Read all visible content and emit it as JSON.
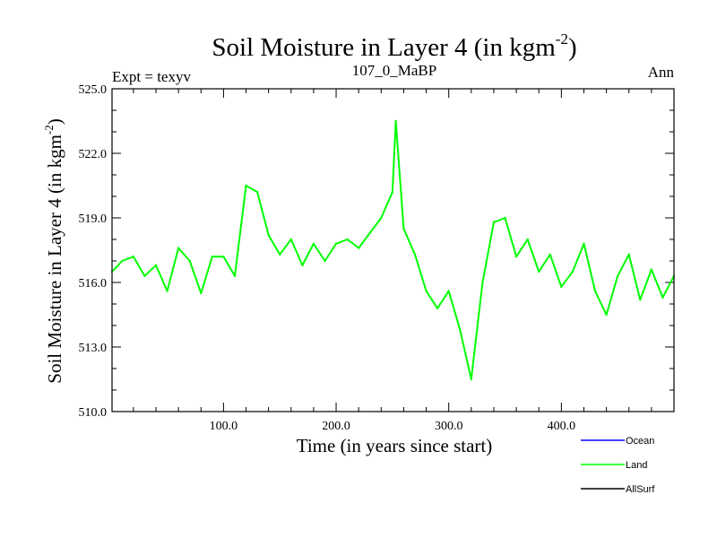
{
  "chart_data": {
    "type": "line",
    "title": "Soil Moisture in Layer 4 (in kgm",
    "title_superscript": "-2",
    "title_suffix": ")",
    "subtitle_left": "Expt = texyv",
    "subtitle_center": "107_0_MaBP",
    "subtitle_right": "Ann",
    "xlabel": "Time (in years since start)",
    "ylabel": "Soil Moisture in Layer 4 (in kgm",
    "ylabel_superscript": "-2",
    "ylabel_suffix": ")",
    "xlim": [
      1,
      500
    ],
    "ylim": [
      510.0,
      525.0
    ],
    "x_ticks": [
      100,
      200,
      300,
      400
    ],
    "x_tick_labels": [
      "100.0",
      "200.0",
      "300.0",
      "400.0"
    ],
    "y_ticks": [
      510,
      513,
      516,
      519,
      522,
      525
    ],
    "y_tick_labels": [
      "510.0",
      "513.0",
      "516.0",
      "519.0",
      "522.0",
      "525.0"
    ],
    "legend_position": "bottom-right, below plot",
    "legend": [
      {
        "name": "Ocean",
        "color": "#0000ff"
      },
      {
        "name": "Land",
        "color": "#00ff00"
      },
      {
        "name": "AllSurf",
        "color": "#000000"
      }
    ],
    "series": [
      {
        "name": "Land",
        "color": "#00ff00",
        "x": [
          1,
          10,
          20,
          30,
          40,
          50,
          60,
          70,
          80,
          90,
          100,
          110,
          120,
          130,
          140,
          150,
          160,
          170,
          180,
          190,
          200,
          210,
          220,
          230,
          240,
          250,
          253,
          260,
          270,
          280,
          290,
          300,
          310,
          320,
          330,
          340,
          350,
          360,
          370,
          380,
          390,
          400,
          410,
          420,
          430,
          440,
          450,
          460,
          470,
          480,
          490,
          500
        ],
        "values": [
          516.5,
          517.0,
          517.2,
          516.3,
          516.8,
          515.6,
          517.6,
          517.0,
          515.5,
          517.2,
          517.2,
          516.3,
          520.5,
          520.2,
          518.2,
          517.3,
          518.0,
          516.8,
          517.8,
          517.0,
          517.8,
          518.0,
          517.6,
          518.3,
          519.0,
          520.2,
          523.5,
          518.5,
          517.3,
          515.6,
          514.8,
          515.6,
          513.8,
          511.5,
          516.0,
          518.8,
          519.0,
          517.2,
          518.0,
          516.5,
          517.3,
          515.8,
          516.5,
          517.8,
          515.6,
          514.5,
          516.3,
          517.3,
          515.2,
          516.6,
          515.3,
          516.3
        ]
      }
    ]
  }
}
